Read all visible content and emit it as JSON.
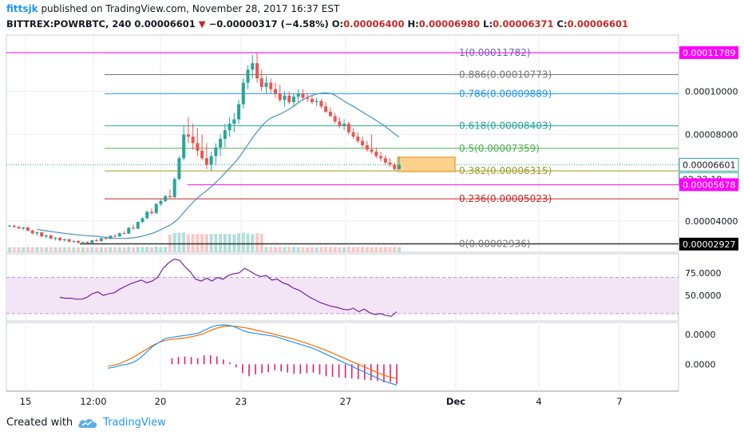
{
  "header": {
    "user": "fittsjk",
    "published": "published on TradingView.com, November 28, 2017 16:37 EST",
    "symbol": "BITTREX:POWRBTC, 240",
    "last": "0.00006601",
    "change": "−0.00000317 (−4.58%)",
    "o_label": "O:",
    "o_value": "0.00006400",
    "h_label": "H:",
    "h_value": "0.00006980",
    "l_label": "L:",
    "l_value": "0.00006371",
    "c_label": "C:",
    "c_value": "0.00006601"
  },
  "footer": {
    "created": "Created with",
    "brand": "TradingView"
  },
  "colors": {
    "up": "#26a69a",
    "down": "#ef5350",
    "ma": "#4a90c2",
    "rsi": "#7b1fa2",
    "rsi_band": "#f3e5f5",
    "macd": "#2196f3",
    "signal": "#ff6d00",
    "hist": "#e91e63",
    "magenta": "#ff00ff"
  },
  "chart_data": {
    "type": "candlestick",
    "price_axis": {
      "ticks": [
        "0.00010000",
        "0.00008000",
        "0.00004000"
      ],
      "range": [
        2.55e-05,
        0.000126
      ]
    },
    "x_ticks": [
      "15",
      "12:00",
      "20",
      "23",
      "27",
      "Dec",
      "4",
      "7"
    ],
    "fib_levels": [
      {
        "ratio": "1",
        "value": "0.00011782",
        "color": "#5c6bc0"
      },
      {
        "ratio": "0.886",
        "value": "0.00010773",
        "color": "#787878"
      },
      {
        "ratio": "0.786",
        "value": "0.00009889",
        "color": "#2196f3"
      },
      {
        "ratio": "0.618",
        "value": "0.00008403",
        "color": "#26a69a"
      },
      {
        "ratio": "0.5",
        "value": "0.00007359",
        "color": "#4caf50"
      },
      {
        "ratio": "0.382",
        "value": "0.00006315",
        "color": "#9e9d24"
      },
      {
        "ratio": "0.236",
        "value": "0.00005023",
        "color": "#c62828"
      },
      {
        "ratio": "0",
        "value": "0.00002936",
        "color": "#787878"
      }
    ],
    "price_labels": [
      {
        "text": "0.00011789",
        "kind": "magenta"
      },
      {
        "text": "0.00006601",
        "kind": "last"
      },
      {
        "text": "02:22:18",
        "kind": "countdown"
      },
      {
        "text": "0.00005678",
        "kind": "magenta"
      },
      {
        "text": "0.00002927",
        "kind": "black"
      }
    ],
    "candles": [
      [
        3.76e-05,
        3.82e-05,
        3.72e-05,
        3.78e-05
      ],
      [
        3.78e-05,
        3.82e-05,
        3.69e-05,
        3.72e-05
      ],
      [
        3.72e-05,
        3.76e-05,
        3.62e-05,
        3.65e-05
      ],
      [
        3.65e-05,
        3.72e-05,
        3.58e-05,
        3.7e-05
      ],
      [
        3.7e-05,
        3.73e-05,
        3.52e-05,
        3.55e-05
      ],
      [
        3.55e-05,
        3.6e-05,
        3.38e-05,
        3.42e-05
      ],
      [
        3.42e-05,
        3.5e-05,
        3.32e-05,
        3.47e-05
      ],
      [
        3.47e-05,
        3.5e-05,
        3.25e-05,
        3.28e-05
      ],
      [
        3.28e-05,
        3.36e-05,
        3.18e-05,
        3.33e-05
      ],
      [
        3.33e-05,
        3.38e-05,
        3.15e-05,
        3.18e-05
      ],
      [
        3.18e-05,
        3.25e-05,
        3.09e-05,
        3.22e-05
      ],
      [
        3.22e-05,
        3.26e-05,
        3.07e-05,
        3.1e-05
      ],
      [
        3.1e-05,
        3.18e-05,
        3.04e-05,
        3.15e-05
      ],
      [
        3.15e-05,
        3.18e-05,
        3.01e-05,
        3.04e-05
      ],
      [
        3.04e-05,
        3.1e-05,
        2.98e-05,
        3.07e-05
      ],
      [
        3.07e-05,
        3.1e-05,
        2.96e-05,
        2.99e-05
      ],
      [
        2.99e-05,
        3.05e-05,
        2.93e-05,
        3.02e-05
      ],
      [
        3.02e-05,
        3.06e-05,
        2.96e-05,
        2.98e-05
      ],
      [
        2.98e-05,
        3.12e-05,
        2.96e-05,
        3.1e-05
      ],
      [
        3.1e-05,
        3.18e-05,
        3.03e-05,
        3.06e-05
      ],
      [
        3.06e-05,
        3.22e-05,
        3.04e-05,
        3.2e-05
      ],
      [
        3.2e-05,
        3.28e-05,
        3.14e-05,
        3.17e-05
      ],
      [
        3.17e-05,
        3.34e-05,
        3.15e-05,
        3.31e-05
      ],
      [
        3.31e-05,
        3.38e-05,
        3.25e-05,
        3.28e-05
      ],
      [
        3.28e-05,
        3.46e-05,
        3.26e-05,
        3.43e-05
      ],
      [
        3.43e-05,
        3.52e-05,
        3.38e-05,
        3.41e-05
      ],
      [
        3.41e-05,
        3.72e-05,
        3.39e-05,
        3.68e-05
      ],
      [
        3.68e-05,
        3.82e-05,
        3.6e-05,
        3.64e-05
      ],
      [
        3.64e-05,
        3.98e-05,
        3.62e-05,
        3.95e-05
      ],
      [
        3.95e-05,
        4.18e-05,
        3.9e-05,
        4.12e-05
      ],
      [
        4.12e-05,
        4.48e-05,
        4.08e-05,
        4.42e-05
      ],
      [
        4.42e-05,
        4.58e-05,
        4.3e-05,
        4.36e-05
      ],
      [
        4.36e-05,
        4.82e-05,
        4.32e-05,
        4.78e-05
      ],
      [
        4.78e-05,
        4.98e-05,
        4.7e-05,
        4.92e-05
      ],
      [
        4.92e-05,
        5.2e-05,
        4.88e-05,
        5.15e-05
      ],
      [
        5.15e-05,
        5.45e-05,
        5.05e-05,
        5.1e-05
      ],
      [
        5.1e-05,
        6e-05,
        5.06e-05,
        5.94e-05
      ],
      [
        5.94e-05,
        7e-05,
        5.88e-05,
        6.9e-05
      ],
      [
        6.9e-05,
        8.4e-05,
        6.8e-05,
        8e-05
      ],
      [
        8e-05,
        8.8e-05,
        7.6e-05,
        7.9e-05
      ],
      [
        7.9e-05,
        8.5e-05,
        7.3e-05,
        7.6e-05
      ],
      [
        7.6e-05,
        8.3e-05,
        7e-05,
        7.25e-05
      ],
      [
        7.25e-05,
        8e-05,
        6.8e-05,
        6.9e-05
      ],
      [
        6.9e-05,
        7.6e-05,
        6.4e-05,
        6.6e-05
      ],
      [
        6.6e-05,
        7.2e-05,
        6.3e-05,
        7e-05
      ],
      [
        7e-05,
        7.6e-05,
        6.6e-05,
        7.4e-05
      ],
      [
        7.4e-05,
        8e-05,
        7e-05,
        7.8e-05
      ],
      [
        7.8e-05,
        8.5e-05,
        7.4e-05,
        8.2e-05
      ],
      [
        8.2e-05,
        8.8e-05,
        7.9e-05,
        8.5e-05
      ],
      [
        8.5e-05,
        9e-05,
        8.1e-05,
        8.7e-05
      ],
      [
        8.7e-05,
        9.6e-05,
        8.5e-05,
        9.4e-05
      ],
      [
        9.4e-05,
        0.000106,
        9.2e-05,
        0.000104
      ],
      [
        0.000104,
        0.000112,
        0.000101,
        0.00011
      ],
      [
        0.00011,
        0.000117,
        0.000106,
        0.000113
      ],
      [
        0.000113,
        0.0001178,
        0.000104,
        0.000106
      ],
      [
        0.000106,
        0.00011,
        0.0001,
        0.000102
      ],
      [
        0.000102,
        0.000107,
        9.9e-05,
        0.000104
      ],
      [
        0.000104,
        0.000106,
        9.9e-05,
        0.000101
      ],
      [
        0.000101,
        0.000104,
        9.7e-05,
        9.9e-05
      ],
      [
        9.9e-05,
        0.000103,
        9.5e-05,
        9.6e-05
      ],
      [
        9.6e-05,
        0.0001,
        9.3e-05,
        9.8e-05
      ],
      [
        9.8e-05,
        0.0001,
        9.4e-05,
        9.5e-05
      ],
      [
        9.5e-05,
        9.9e-05,
        9.3e-05,
        9.75e-05
      ],
      [
        9.75e-05,
        0.000101,
        9.5e-05,
        9.9e-05
      ],
      [
        9.9e-05,
        0.000101,
        9.6e-05,
        9.7e-05
      ],
      [
        9.7e-05,
        9.9e-05,
        9.5e-05,
        9.65e-05
      ],
      [
        9.65e-05,
        9.8e-05,
        9.4e-05,
        9.5e-05
      ],
      [
        9.5e-05,
        9.7e-05,
        9.3e-05,
        9.55e-05
      ],
      [
        9.55e-05,
        9.65e-05,
        9.2e-05,
        9.3e-05
      ],
      [
        9.3e-05,
        9.5e-05,
        9e-05,
        9.05e-05
      ],
      [
        9.05e-05,
        9.25e-05,
        8.8e-05,
        8.85e-05
      ],
      [
        8.85e-05,
        9e-05,
        8.5e-05,
        8.6e-05
      ],
      [
        8.6e-05,
        8.8e-05,
        8.3e-05,
        8.4e-05
      ],
      [
        8.4e-05,
        8.7e-05,
        8.2e-05,
        8.5e-05
      ],
      [
        8.5e-05,
        8.6e-05,
        8e-05,
        8.1e-05
      ],
      [
        8.1e-05,
        8.3e-05,
        7.8e-05,
        7.9e-05
      ],
      [
        7.9e-05,
        8.1e-05,
        7.6e-05,
        7.7e-05
      ],
      [
        7.7e-05,
        7.9e-05,
        7.4e-05,
        7.5e-05
      ],
      [
        7.5e-05,
        7.7e-05,
        7.2e-05,
        7.3e-05
      ],
      [
        7.3e-05,
        8e-05,
        7.1e-05,
        7.2e-05
      ],
      [
        7.2e-05,
        7.4e-05,
        6.9e-05,
        7e-05
      ],
      [
        7e-05,
        7.2e-05,
        6.75e-05,
        6.9e-05
      ],
      [
        6.9e-05,
        7.05e-05,
        6.6e-05,
        6.7e-05
      ],
      [
        6.7e-05,
        6.9e-05,
        6.5e-05,
        6.6e-05
      ],
      [
        6.6e-05,
        6.7e-05,
        6.3e-05,
        6.4e-05
      ],
      [
        6.4e-05,
        6.98e-05,
        6.37e-05,
        6.6e-05
      ]
    ],
    "rsi_axis": {
      "ticks": [
        "75.0000",
        "50.0000"
      ],
      "band": [
        30,
        70
      ],
      "range": [
        22,
        96
      ]
    },
    "rsi_values": [
      48,
      47,
      47,
      46,
      46,
      48,
      52,
      54,
      50,
      52,
      53,
      57,
      60,
      63,
      65,
      67,
      64,
      66,
      70,
      80,
      86,
      90,
      89,
      82,
      76,
      68,
      66,
      69,
      66,
      70,
      68,
      72,
      74,
      75,
      80,
      77,
      73,
      71,
      72,
      67,
      68,
      64,
      62,
      58,
      56,
      52,
      48,
      45,
      42,
      40,
      38,
      37,
      35,
      34,
      36,
      32,
      35,
      31,
      29,
      30,
      28,
      27,
      32
    ],
    "macd_axis": {
      "ticks": [
        "0.0000",
        "0.0000"
      ],
      "range": [
        -1.35,
        2.1
      ]
    },
    "macd_values": [
      -0.2,
      -0.15,
      -0.05,
      0.0,
      0.1,
      0.3,
      0.6,
      0.9,
      1.1,
      1.3,
      1.35,
      1.4,
      1.45,
      1.5,
      1.55,
      1.7,
      1.85,
      1.95,
      1.98,
      1.95,
      1.85,
      1.7,
      1.6,
      1.55,
      1.5,
      1.45,
      1.4,
      1.3,
      1.2,
      1.1,
      1.0,
      0.9,
      0.8,
      0.65,
      0.5,
      0.35,
      0.2,
      0.05,
      -0.1,
      -0.25,
      -0.4,
      -0.55,
      -0.7,
      -0.85,
      -0.95,
      -1.05
    ],
    "signal_values": [
      -0.1,
      -0.05,
      0.05,
      0.2,
      0.35,
      0.55,
      0.75,
      0.95,
      1.1,
      1.2,
      1.25,
      1.28,
      1.32,
      1.38,
      1.45,
      1.55,
      1.7,
      1.82,
      1.9,
      1.92,
      1.9,
      1.85,
      1.8,
      1.72,
      1.65,
      1.58,
      1.5,
      1.42,
      1.34,
      1.26,
      1.16,
      1.05,
      0.94,
      0.82,
      0.7,
      0.56,
      0.42,
      0.28,
      0.14,
      0.0,
      -0.14,
      -0.28,
      -0.42,
      -0.55,
      -0.65,
      -0.72
    ]
  }
}
